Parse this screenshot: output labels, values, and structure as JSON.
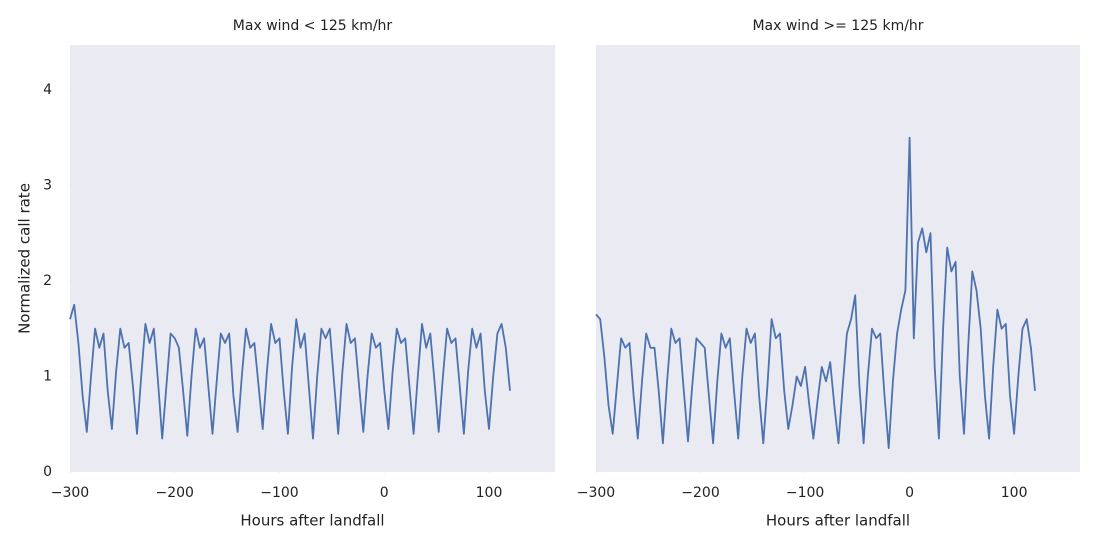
{
  "chart_data": [
    {
      "type": "line",
      "title": "Max wind < 125 km/hr",
      "xlabel": "Hours after landfall",
      "ylabel": "Normalized call rate",
      "x": [
        -300,
        -296,
        -292,
        -288,
        -284,
        -280,
        -276,
        -272,
        -268,
        -264,
        -260,
        -256,
        -252,
        -248,
        -244,
        -240,
        -236,
        -232,
        -228,
        -224,
        -220,
        -216,
        -212,
        -208,
        -204,
        -200,
        -196,
        -192,
        -188,
        -184,
        -180,
        -176,
        -172,
        -168,
        -164,
        -160,
        -156,
        -152,
        -148,
        -144,
        -140,
        -136,
        -132,
        -128,
        -124,
        -120,
        -116,
        -112,
        -108,
        -104,
        -100,
        -96,
        -92,
        -88,
        -84,
        -80,
        -76,
        -72,
        -68,
        -64,
        -60,
        -56,
        -52,
        -48,
        -44,
        -40,
        -36,
        -32,
        -28,
        -24,
        -20,
        -16,
        -12,
        -8,
        -4,
        0,
        4,
        8,
        12,
        16,
        20,
        24,
        28,
        32,
        36,
        40,
        44,
        48,
        52,
        56,
        60,
        64,
        68,
        72,
        76,
        80,
        84,
        88,
        92,
        96,
        100,
        104,
        108,
        112,
        116,
        120
      ],
      "series": [
        {
          "name": "calls",
          "color": "#4c72b0",
          "values": [
            1.6,
            1.75,
            1.35,
            0.8,
            0.42,
            1.0,
            1.5,
            1.3,
            1.45,
            0.85,
            0.45,
            1.05,
            1.5,
            1.3,
            1.35,
            0.9,
            0.4,
            1.0,
            1.55,
            1.35,
            1.5,
            0.95,
            0.35,
            0.9,
            1.45,
            1.4,
            1.3,
            0.85,
            0.38,
            1.0,
            1.5,
            1.3,
            1.4,
            0.9,
            0.4,
            0.95,
            1.45,
            1.35,
            1.45,
            0.8,
            0.42,
            1.0,
            1.5,
            1.3,
            1.35,
            0.9,
            0.45,
            1.05,
            1.55,
            1.35,
            1.4,
            0.85,
            0.4,
            1.1,
            1.6,
            1.3,
            1.45,
            0.9,
            0.35,
            1.0,
            1.5,
            1.4,
            1.5,
            0.95,
            0.4,
            1.05,
            1.55,
            1.35,
            1.4,
            0.9,
            0.42,
            1.0,
            1.45,
            1.3,
            1.35,
            0.85,
            0.45,
            1.05,
            1.5,
            1.35,
            1.4,
            0.9,
            0.4,
            1.0,
            1.55,
            1.3,
            1.45,
            0.95,
            0.42,
            1.0,
            1.5,
            1.35,
            1.4,
            0.9,
            0.4,
            1.05,
            1.5,
            1.3,
            1.45,
            0.85,
            0.45,
            1.0,
            1.45,
            1.55,
            1.3,
            0.85
          ]
        }
      ],
      "xlim": [
        -300,
        163
      ],
      "ylim": [
        0,
        4.47
      ],
      "xticks": [
        {
          "value": -300,
          "label": "−300"
        },
        {
          "value": -200,
          "label": "−200"
        },
        {
          "value": -100,
          "label": "−100"
        },
        0,
        100
      ],
      "yticks": [
        0,
        1,
        2,
        3,
        4
      ],
      "grid": false
    },
    {
      "type": "line",
      "title": "Max wind >= 125 km/hr",
      "xlabel": "Hours after landfall",
      "x": [
        -300,
        -296,
        -292,
        -288,
        -284,
        -280,
        -276,
        -272,
        -268,
        -264,
        -260,
        -256,
        -252,
        -248,
        -244,
        -240,
        -236,
        -232,
        -228,
        -224,
        -220,
        -216,
        -212,
        -208,
        -204,
        -200,
        -196,
        -192,
        -188,
        -184,
        -180,
        -176,
        -172,
        -168,
        -164,
        -160,
        -156,
        -152,
        -148,
        -144,
        -140,
        -136,
        -132,
        -128,
        -124,
        -120,
        -116,
        -112,
        -108,
        -104,
        -100,
        -96,
        -92,
        -88,
        -84,
        -80,
        -76,
        -72,
        -68,
        -64,
        -60,
        -56,
        -52,
        -48,
        -44,
        -40,
        -36,
        -32,
        -28,
        -24,
        -20,
        -16,
        -12,
        -8,
        -4,
        0,
        4,
        8,
        12,
        16,
        20,
        24,
        28,
        32,
        36,
        40,
        44,
        48,
        52,
        56,
        60,
        64,
        68,
        72,
        76,
        80,
        84,
        88,
        92,
        96,
        100,
        104,
        108,
        112,
        116,
        120
      ],
      "series": [
        {
          "name": "calls",
          "color": "#4c72b0",
          "values": [
            1.65,
            1.6,
            1.2,
            0.7,
            0.4,
            0.9,
            1.4,
            1.3,
            1.35,
            0.8,
            0.35,
            0.95,
            1.45,
            1.3,
            1.3,
            0.85,
            0.3,
            0.95,
            1.5,
            1.35,
            1.4,
            0.85,
            0.32,
            0.9,
            1.4,
            1.35,
            1.3,
            0.8,
            0.3,
            0.95,
            1.45,
            1.3,
            1.4,
            0.85,
            0.35,
            1.0,
            1.5,
            1.35,
            1.45,
            0.8,
            0.3,
            0.9,
            1.6,
            1.4,
            1.45,
            0.85,
            0.45,
            0.7,
            1.0,
            0.9,
            1.1,
            0.7,
            0.35,
            0.75,
            1.1,
            0.95,
            1.15,
            0.7,
            0.3,
            0.9,
            1.45,
            1.6,
            1.85,
            0.9,
            0.3,
            1.0,
            1.5,
            1.4,
            1.45,
            0.8,
            0.25,
            0.95,
            1.45,
            1.7,
            1.9,
            3.5,
            1.4,
            2.4,
            2.55,
            2.3,
            2.5,
            1.1,
            0.35,
            1.5,
            2.35,
            2.1,
            2.2,
            1.0,
            0.4,
            1.3,
            2.1,
            1.9,
            1.5,
            0.8,
            0.35,
            1.1,
            1.7,
            1.5,
            1.55,
            0.8,
            0.4,
            1.0,
            1.5,
            1.6,
            1.3,
            0.85
          ]
        }
      ],
      "xlim": [
        -300,
        163
      ],
      "ylim": [
        0,
        4.47
      ],
      "xticks": [
        {
          "value": -300,
          "label": "−300"
        },
        {
          "value": -200,
          "label": "−200"
        },
        {
          "value": -100,
          "label": "−100"
        },
        0,
        100
      ],
      "grid": false
    }
  ]
}
